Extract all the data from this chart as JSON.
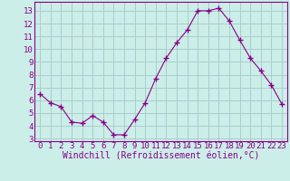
{
  "x": [
    0,
    1,
    2,
    3,
    4,
    5,
    6,
    7,
    8,
    9,
    10,
    11,
    12,
    13,
    14,
    15,
    16,
    17,
    18,
    19,
    20,
    21,
    22,
    23
  ],
  "y": [
    6.5,
    5.8,
    5.5,
    4.3,
    4.2,
    4.8,
    4.3,
    3.3,
    3.3,
    4.5,
    5.8,
    7.7,
    9.3,
    10.5,
    11.5,
    13.0,
    13.0,
    13.2,
    12.2,
    10.7,
    9.3,
    8.3,
    7.2,
    5.7
  ],
  "line_color": "#880088",
  "marker": "+",
  "marker_size": 4,
  "bg_color": "#cceee8",
  "grid_color": "#aacccc",
  "xlabel": "Windchill (Refroidissement éolien,°C)",
  "ylabel_ticks": [
    3,
    4,
    5,
    6,
    7,
    8,
    9,
    10,
    11,
    12,
    13
  ],
  "xlim": [
    -0.5,
    23.5
  ],
  "ylim": [
    2.8,
    13.7
  ],
  "xlabel_fontsize": 7.0,
  "tick_fontsize": 6.5,
  "label_color": "#880088"
}
